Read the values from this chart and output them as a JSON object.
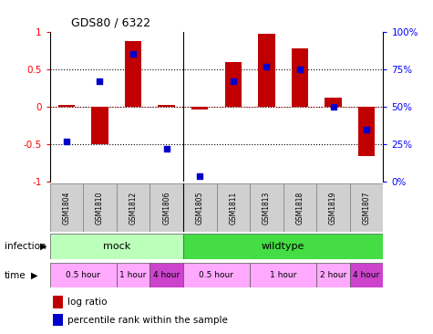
{
  "title": "GDS80 / 6322",
  "samples": [
    "GSM1804",
    "GSM1810",
    "GSM1812",
    "GSM1806",
    "GSM1805",
    "GSM1811",
    "GSM1813",
    "GSM1818",
    "GSM1819",
    "GSM1807"
  ],
  "log_ratio": [
    0.02,
    -0.5,
    0.87,
    0.03,
    -0.04,
    0.6,
    0.97,
    0.78,
    0.12,
    -0.65
  ],
  "percentile": [
    0.27,
    0.67,
    0.85,
    0.22,
    0.04,
    0.67,
    0.77,
    0.75,
    0.5,
    0.35
  ],
  "bar_color": "#c00000",
  "dot_color": "#0000cc",
  "ylim_left": [
    -1,
    1
  ],
  "yticks_left": [
    -1,
    -0.5,
    0,
    0.5,
    1
  ],
  "ytick_labels_left": [
    "-1",
    "-0.5",
    "0",
    "0.5",
    "1"
  ],
  "ytick_labels_right": [
    "0%",
    "25%",
    "50%",
    "75%",
    "100%"
  ],
  "infection_groups": [
    {
      "label": "mock",
      "start": 0,
      "end": 4,
      "color": "#bbffbb"
    },
    {
      "label": "wildtype",
      "start": 4,
      "end": 10,
      "color": "#44dd44"
    }
  ],
  "time_groups": [
    {
      "label": "0.5 hour",
      "start": 0,
      "end": 2,
      "color": "#ffaaff"
    },
    {
      "label": "1 hour",
      "start": 2,
      "end": 3,
      "color": "#ffaaff"
    },
    {
      "label": "4 hour",
      "start": 3,
      "end": 4,
      "color": "#cc44cc"
    },
    {
      "label": "0.5 hour",
      "start": 4,
      "end": 6,
      "color": "#ffaaff"
    },
    {
      "label": "1 hour",
      "start": 6,
      "end": 8,
      "color": "#ffaaff"
    },
    {
      "label": "2 hour",
      "start": 8,
      "end": 9,
      "color": "#ffaaff"
    },
    {
      "label": "4 hour",
      "start": 9,
      "end": 10,
      "color": "#cc44cc"
    }
  ],
  "row_label_infection": "infection",
  "row_label_time": "time",
  "legend_log_ratio": "log ratio",
  "legend_percentile": "percentile rank within the sample",
  "bar_width": 0.5,
  "dot_size": 22,
  "sample_box_color": "#d0d0d0",
  "sample_box_edge": "#888888"
}
